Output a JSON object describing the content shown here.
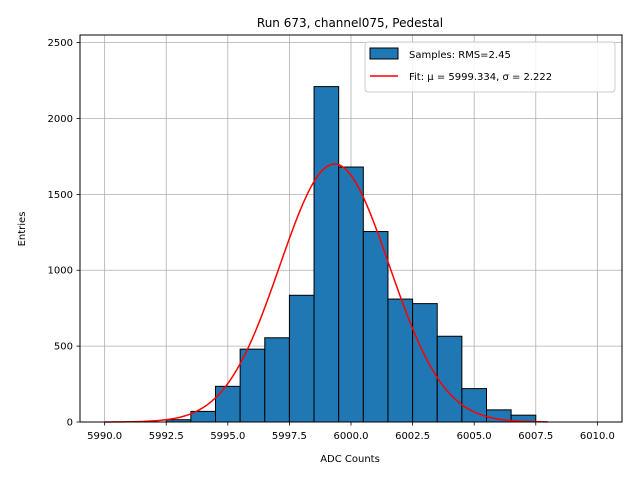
{
  "chart_data": {
    "type": "bar",
    "title": "Run 673, channel075, Pedestal",
    "xlabel": "ADC Counts",
    "ylabel": "Entries",
    "xlim": [
      5989,
      6011
    ],
    "ylim": [
      0,
      2550
    ],
    "grid": true,
    "legend_position": "top-right",
    "x_ticks": [
      5990.0,
      5992.5,
      5995.0,
      5997.5,
      6000.0,
      6002.5,
      6005.0,
      6007.5,
      6010.0
    ],
    "x_tick_labels": [
      "5990.0",
      "5992.5",
      "5995.0",
      "5997.5",
      "6000.0",
      "6002.5",
      "6005.0",
      "6007.5",
      "6010.0"
    ],
    "y_ticks": [
      0,
      500,
      1000,
      1500,
      2000,
      2500
    ],
    "y_tick_labels": [
      "0",
      "500",
      "1000",
      "1500",
      "2000",
      "2500"
    ],
    "histogram": {
      "legend_label": "Samples: RMS=2.45",
      "color": "#1f77b4",
      "edge_color": "#000000",
      "bins": [
        {
          "x0": 5992.5,
          "x1": 5993.5,
          "count": 15
        },
        {
          "x0": 5993.5,
          "x1": 5994.5,
          "count": 70
        },
        {
          "x0": 5994.5,
          "x1": 5995.5,
          "count": 235
        },
        {
          "x0": 5995.5,
          "x1": 5996.5,
          "count": 480
        },
        {
          "x0": 5996.5,
          "x1": 5997.5,
          "count": 555
        },
        {
          "x0": 5997.5,
          "x1": 5998.5,
          "count": 835
        },
        {
          "x0": 5998.5,
          "x1": 5999.5,
          "count": 2210
        },
        {
          "x0": 5999.5,
          "x1": 6000.5,
          "count": 1680
        },
        {
          "x0": 6000.5,
          "x1": 6001.5,
          "count": 1255
        },
        {
          "x0": 6001.5,
          "x1": 6002.5,
          "count": 810
        },
        {
          "x0": 6002.5,
          "x1": 6003.5,
          "count": 780
        },
        {
          "x0": 6003.5,
          "x1": 6004.5,
          "count": 565
        },
        {
          "x0": 6004.5,
          "x1": 6005.5,
          "count": 220
        },
        {
          "x0": 6005.5,
          "x1": 6006.5,
          "count": 80
        },
        {
          "x0": 6006.5,
          "x1": 6007.5,
          "count": 45
        }
      ]
    },
    "fit": {
      "legend_label": "Fit: μ = 5999.334, σ = 2.222",
      "color": "#ff0000",
      "mu": 5999.334,
      "sigma": 2.222,
      "amplitude": 1700,
      "x_range": [
        5990,
        6008
      ]
    }
  }
}
